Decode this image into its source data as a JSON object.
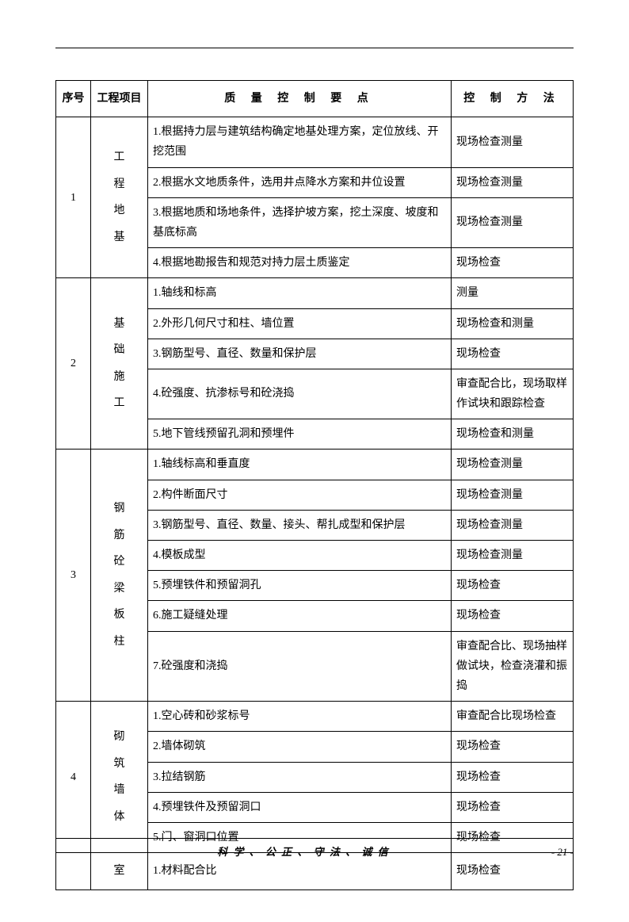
{
  "headers": {
    "num": "序号",
    "project": "工程项目",
    "points": "质 量 控 制 要 点",
    "method": "控 制 方 法"
  },
  "rows": [
    {
      "num": "1",
      "project": "工程地基",
      "items": [
        {
          "point": "1.根据持力层与建筑结构确定地基处理方案，定位放线、开挖范围",
          "method": "现场检查测量"
        },
        {
          "point": "2.根据水文地质条件，选用井点降水方案和井位设置",
          "method": "现场检查测量"
        },
        {
          "point": "3.根据地质和场地条件，选择护坡方案，挖土深度、坡度和基底标高",
          "method": "现场检查测量"
        },
        {
          "point": "4.根据地勘报告和规范对持力层土质鉴定",
          "method": "现场检查"
        }
      ]
    },
    {
      "num": "2",
      "project": "基础施工",
      "items": [
        {
          "point": "1.轴线和标高",
          "method": "测量"
        },
        {
          "point": "2.外形几何尺寸和柱、墙位置",
          "method": "现场检查和测量"
        },
        {
          "point": "3.钢筋型号、直径、数量和保护层",
          "method": "现场检查"
        },
        {
          "point": "4.砼强度、抗渗标号和砼浇捣",
          "method": "审查配合比，现场取样作试块和跟踪检查"
        },
        {
          "point": "5.地下管线预留孔洞和预埋件",
          "method": "现场检查和测量"
        }
      ]
    },
    {
      "num": "3",
      "project": "钢筋砼梁板柱",
      "items": [
        {
          "point": "1.轴线标高和垂直度",
          "method": "现场检查测量"
        },
        {
          "point": "2.构件断面尺寸",
          "method": "现场检查测量"
        },
        {
          "point": "3.钢筋型号、直径、数量、接头、帮扎成型和保护层",
          "method": "现场检查测量"
        },
        {
          "point": "4.模板成型",
          "method": "现场检查测量"
        },
        {
          "point": "5.预埋铁件和预留洞孔",
          "method": "现场检查"
        },
        {
          "point": "6.施工疑缝处理",
          "method": "现场检查"
        },
        {
          "point": "7.砼强度和浇捣",
          "method": "审查配合比、现场抽样做试块，检查浇灌和振捣"
        }
      ]
    },
    {
      "num": "4",
      "project": "砌筑墙体",
      "items": [
        {
          "point": "1.空心砖和砂浆标号",
          "method": "审查配合比现场检查"
        },
        {
          "point": "2.墙体砌筑",
          "method": "现场检查"
        },
        {
          "point": "3.拉结钢筋",
          "method": "现场检查"
        },
        {
          "point": "4.预埋铁件及预留洞口",
          "method": "现场检查"
        },
        {
          "point": "5.门、窗洞口位置",
          "method": "现场检查"
        }
      ]
    },
    {
      "num": "",
      "project": "室",
      "items": [
        {
          "point": "1.材料配合比",
          "method": "现场检查"
        }
      ]
    }
  ],
  "footer": {
    "motto": "科 学 、 公 正 、 守 法 、 诚 信",
    "page": "- 21 -"
  }
}
